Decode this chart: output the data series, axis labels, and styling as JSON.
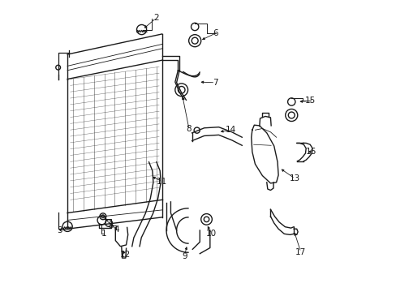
{
  "background_color": "#ffffff",
  "line_color": "#1a1a1a",
  "line_width": 1.0,
  "label_fontsize": 7.5,
  "fig_width": 4.89,
  "fig_height": 3.6,
  "dpi": 100
}
